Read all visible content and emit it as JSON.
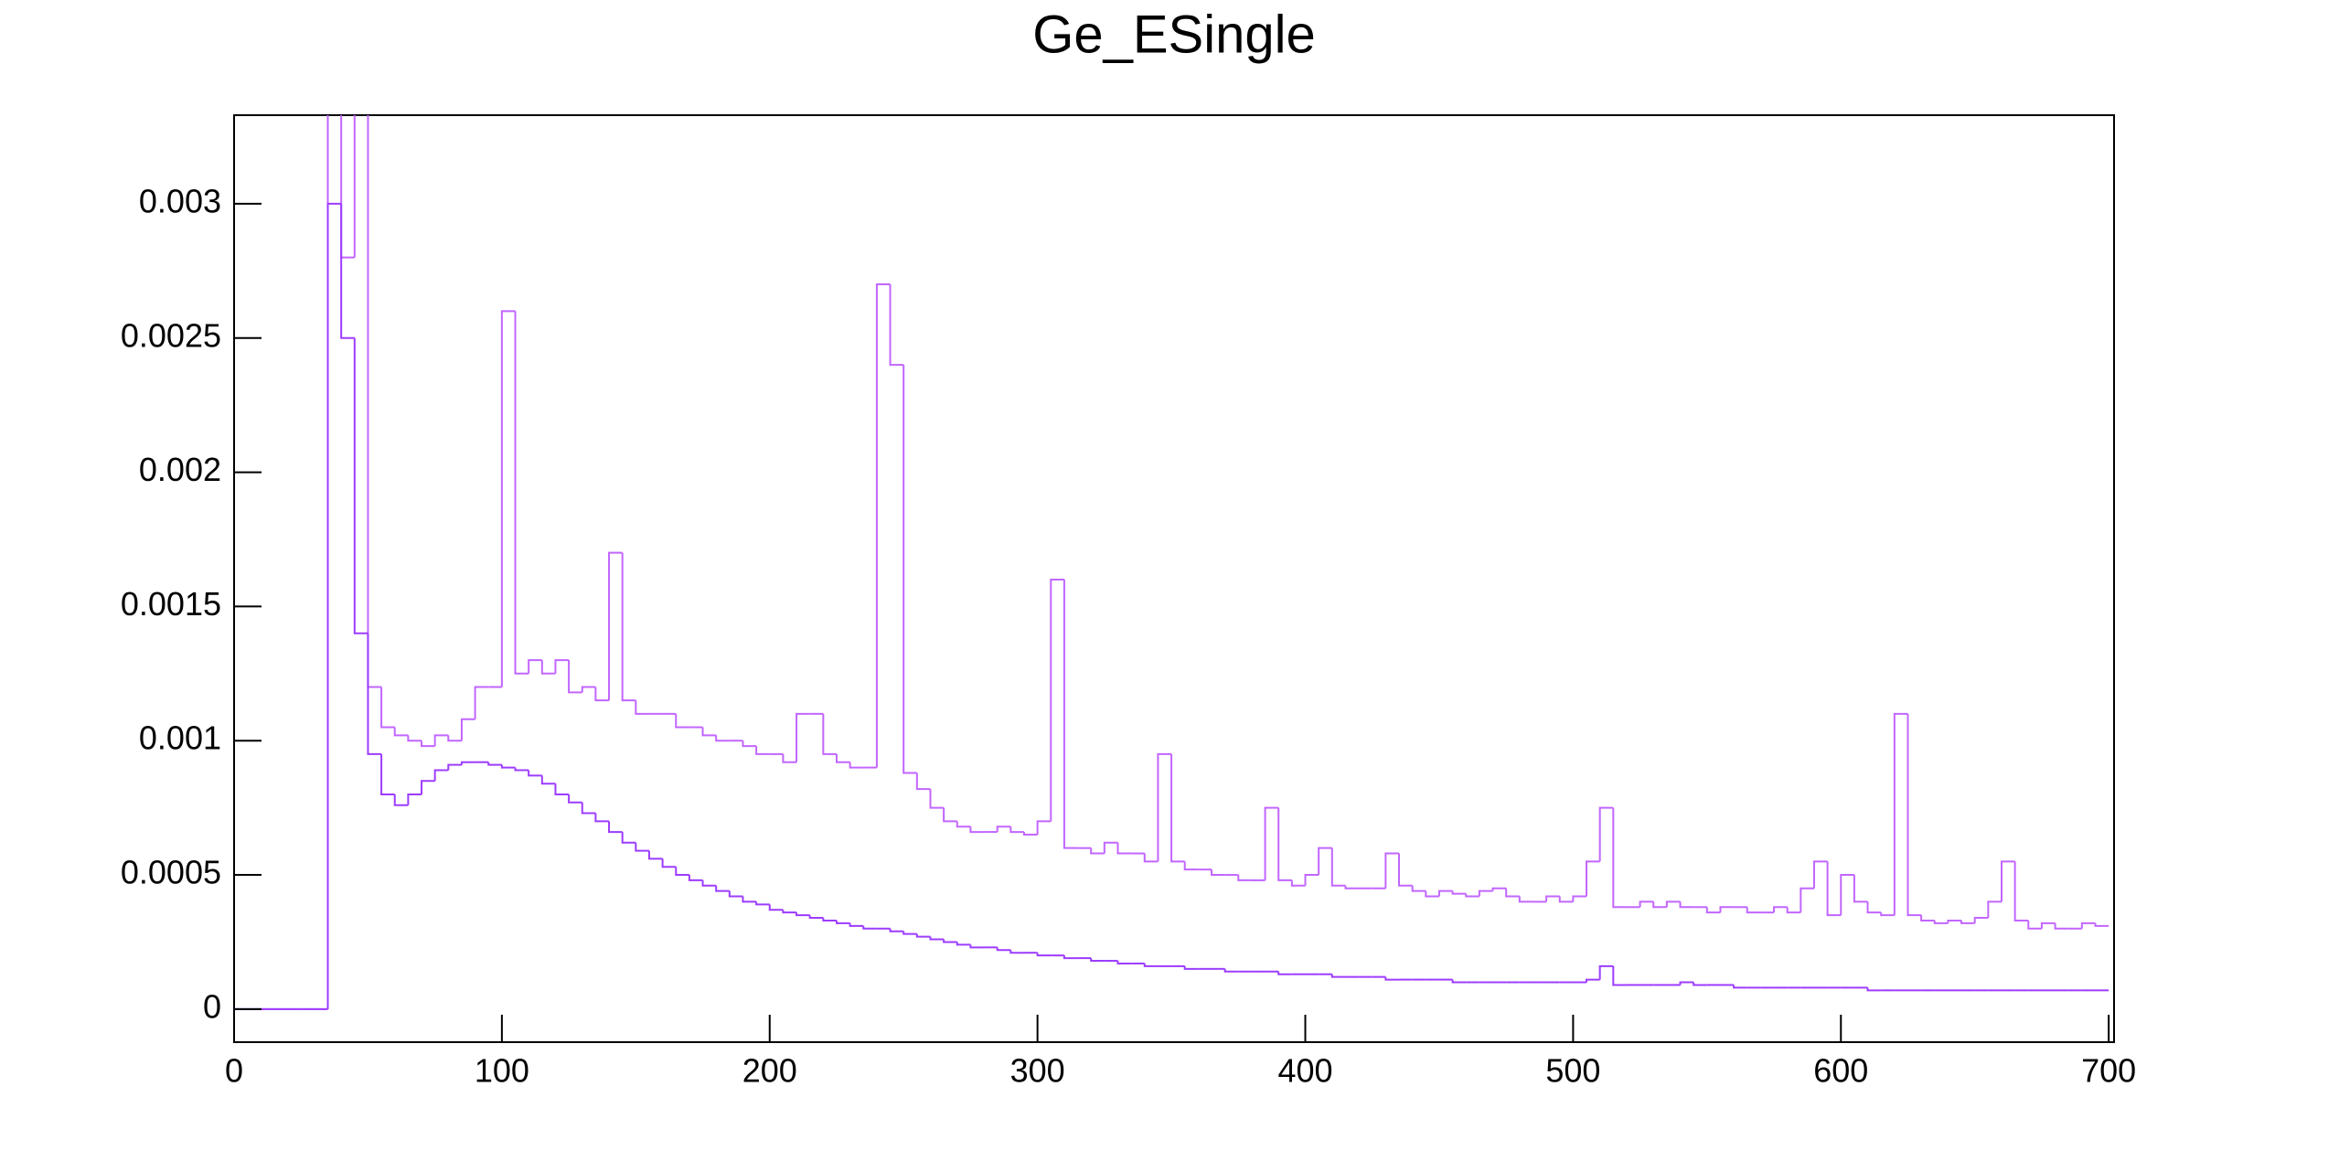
{
  "chart_data": {
    "type": "histogram",
    "title": "Ge_ESingle",
    "bins": [
      0,
      5,
      10,
      15,
      20,
      25,
      30,
      35,
      40,
      45,
      50,
      55,
      60,
      65,
      70,
      75,
      80,
      85,
      90,
      95,
      100,
      105,
      110,
      115,
      120,
      125,
      130,
      135,
      140,
      145,
      150,
      155,
      160,
      165,
      170,
      175,
      180,
      185,
      190,
      195,
      200,
      205,
      210,
      215,
      220,
      225,
      230,
      235,
      240,
      245,
      250,
      255,
      260,
      265,
      270,
      275,
      280,
      285,
      290,
      295,
      300,
      305,
      310,
      315,
      320,
      325,
      330,
      335,
      340,
      345,
      350,
      355,
      360,
      365,
      370,
      375,
      380,
      385,
      390,
      395,
      400,
      405,
      410,
      415,
      420,
      425,
      430,
      435,
      440,
      445,
      450,
      455,
      460,
      465,
      470,
      475,
      480,
      485,
      490,
      495,
      500,
      505,
      510,
      515,
      520,
      525,
      530,
      535,
      540,
      545,
      550,
      555,
      560,
      565,
      570,
      575,
      580,
      585,
      590,
      595,
      600,
      605,
      610,
      615,
      620,
      625,
      630,
      635,
      640,
      645,
      650,
      655,
      660,
      665,
      670,
      675,
      680,
      685,
      690,
      695,
      700
    ],
    "series": [
      {
        "color": "#c266ff",
        "values": [
          0,
          0,
          0,
          0,
          0,
          0,
          0,
          0.0035,
          0.0028,
          0.0034,
          0.0012,
          0.00105,
          0.00102,
          0.001,
          0.00098,
          0.00102,
          0.001,
          0.00108,
          0.0012,
          0.0012,
          0.0026,
          0.00125,
          0.0013,
          0.00125,
          0.0013,
          0.00118,
          0.0012,
          0.00115,
          0.0017,
          0.00115,
          0.0011,
          0.0011,
          0.0011,
          0.00105,
          0.00105,
          0.00102,
          0.001,
          0.001,
          0.00098,
          0.00095,
          0.00095,
          0.00092,
          0.0011,
          0.0011,
          0.00095,
          0.00092,
          0.0009,
          0.0009,
          0.0027,
          0.0024,
          0.00088,
          0.00082,
          0.00075,
          0.0007,
          0.00068,
          0.00066,
          0.00066,
          0.00068,
          0.00066,
          0.00065,
          0.0007,
          0.0016,
          0.0006,
          0.0006,
          0.00058,
          0.00062,
          0.00058,
          0.00058,
          0.00055,
          0.00095,
          0.00055,
          0.00052,
          0.00052,
          0.0005,
          0.0005,
          0.00048,
          0.00048,
          0.00075,
          0.00048,
          0.00046,
          0.0005,
          0.0006,
          0.00046,
          0.00045,
          0.00045,
          0.00045,
          0.00058,
          0.00046,
          0.00044,
          0.00042,
          0.00044,
          0.00043,
          0.00042,
          0.00044,
          0.00045,
          0.00042,
          0.0004,
          0.0004,
          0.00042,
          0.0004,
          0.00042,
          0.00055,
          0.00075,
          0.00038,
          0.00038,
          0.0004,
          0.00038,
          0.0004,
          0.00038,
          0.00038,
          0.00036,
          0.00038,
          0.00038,
          0.00036,
          0.00036,
          0.00038,
          0.00036,
          0.00045,
          0.00055,
          0.00035,
          0.0005,
          0.0004,
          0.00036,
          0.00035,
          0.0011,
          0.00035,
          0.00033,
          0.00032,
          0.00033,
          0.00032,
          0.00034,
          0.0004,
          0.00055,
          0.00033,
          0.0003,
          0.00032,
          0.0003,
          0.0003,
          0.00032,
          0.00031
        ]
      },
      {
        "color": "#9d3cff",
        "values": [
          0,
          0,
          0,
          0,
          0,
          0,
          0,
          0.003,
          0.0025,
          0.0014,
          0.00095,
          0.0008,
          0.00076,
          0.0008,
          0.00085,
          0.00089,
          0.00091,
          0.00092,
          0.00092,
          0.00091,
          0.0009,
          0.00089,
          0.00087,
          0.00084,
          0.0008,
          0.00077,
          0.00073,
          0.0007,
          0.00066,
          0.00062,
          0.00059,
          0.00056,
          0.00053,
          0.0005,
          0.00048,
          0.00046,
          0.00044,
          0.00042,
          0.0004,
          0.00039,
          0.00037,
          0.00036,
          0.00035,
          0.00034,
          0.00033,
          0.00032,
          0.00031,
          0.0003,
          0.0003,
          0.00029,
          0.00028,
          0.00027,
          0.00026,
          0.00025,
          0.00024,
          0.00023,
          0.00023,
          0.00022,
          0.00021,
          0.00021,
          0.0002,
          0.0002,
          0.00019,
          0.00019,
          0.00018,
          0.00018,
          0.00017,
          0.00017,
          0.00016,
          0.00016,
          0.00016,
          0.00015,
          0.00015,
          0.00015,
          0.00014,
          0.00014,
          0.00014,
          0.00014,
          0.00013,
          0.00013,
          0.00013,
          0.00013,
          0.00012,
          0.00012,
          0.00012,
          0.00012,
          0.00011,
          0.00011,
          0.00011,
          0.00011,
          0.00011,
          0.0001,
          0.0001,
          0.0001,
          0.0001,
          0.0001,
          0.0001,
          0.0001,
          0.0001,
          0.0001,
          0.0001,
          0.00011,
          0.00016,
          9e-05,
          9e-05,
          9e-05,
          9e-05,
          9e-05,
          0.0001,
          9e-05,
          9e-05,
          9e-05,
          8e-05,
          8e-05,
          8e-05,
          8e-05,
          8e-05,
          8e-05,
          8e-05,
          8e-05,
          8e-05,
          8e-05,
          7e-05,
          7e-05,
          7e-05,
          7e-05,
          7e-05,
          7e-05,
          7e-05,
          7e-05,
          7e-05,
          7e-05,
          7e-05,
          7e-05,
          7e-05,
          7e-05,
          7e-05,
          7e-05,
          7e-05,
          7e-05
        ]
      }
    ],
    "xlim": [
      0,
      702
    ],
    "xticks": [
      0,
      100,
      200,
      300,
      400,
      500,
      600,
      700
    ],
    "ylim": [
      -0.000123,
      0.00333
    ],
    "yticks": [
      0,
      0.0005,
      0.001,
      0.0015,
      0.002,
      0.0025,
      0.003
    ]
  }
}
